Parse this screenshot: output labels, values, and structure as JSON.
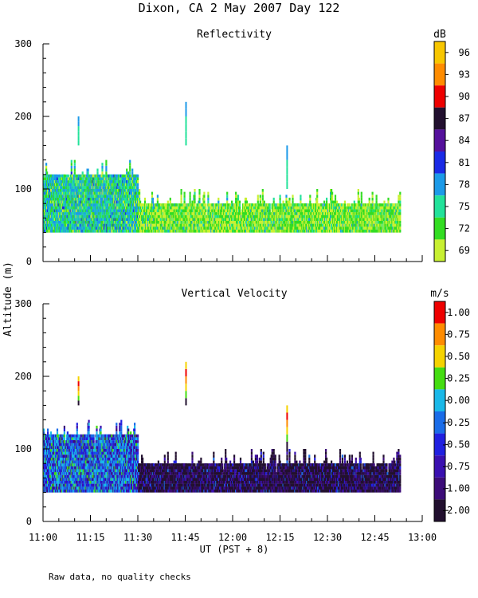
{
  "title": "Dixon, CA  2 May 2007  Day 122",
  "footnote": "Raw data, no quality checks",
  "chart_data": [
    {
      "type": "heatmap",
      "title": "Reflectivity",
      "ylabel": "Altitude (m)",
      "xlabel": "UT  (PST + 8)",
      "xlim": [
        "11:00",
        "13:00"
      ],
      "xticks": [
        "11:00",
        "11:15",
        "11:30",
        "11:45",
        "12:00",
        "12:15",
        "12:30",
        "12:45",
        "13:00"
      ],
      "ylim": [
        0,
        300
      ],
      "yticks": [
        "0",
        "100",
        "200",
        "300"
      ],
      "colorbar": {
        "unit": "dB",
        "labels": [
          "96",
          "93",
          "90",
          "87",
          "84",
          "81",
          "78",
          "75",
          "72",
          "69"
        ],
        "colors": [
          "#f7c600",
          "#ff8c00",
          "#ee0000",
          "#22102f",
          "#55119c",
          "#1a2ae6",
          "#1c9ae8",
          "#22e29a",
          "#33dd22",
          "#c8f032"
        ]
      },
      "data_extent": {
        "start": "11:00",
        "end": "12:53",
        "min_altitude_m": 40,
        "typical_top_m": [
          80,
          120
        ]
      },
      "features": [
        {
          "time": "11:11",
          "altitude_m": [
            160,
            200
          ]
        },
        {
          "time": "11:45",
          "altitude_m": [
            160,
            220
          ]
        },
        {
          "time": "12:17",
          "altitude_m": [
            100,
            160
          ]
        }
      ]
    },
    {
      "type": "heatmap",
      "title": "Vertical Velocity",
      "ylabel": "Altitude (m)",
      "xlabel": "UT  (PST + 8)",
      "xlim": [
        "11:00",
        "13:00"
      ],
      "xticks": [
        "11:00",
        "11:15",
        "11:30",
        "11:45",
        "12:00",
        "12:15",
        "12:30",
        "12:45",
        "13:00"
      ],
      "ylim": [
        0,
        300
      ],
      "yticks": [
        "0",
        "100",
        "200",
        "300"
      ],
      "colorbar": {
        "unit": "m/s",
        "labels": [
          "1.00",
          "0.75",
          "0.50",
          "0.25",
          "0.00",
          "-0.25",
          "-0.50",
          "-0.75",
          "-1.00",
          "-2.00"
        ],
        "colors": [
          "#ee0000",
          "#ff8c00",
          "#f5d300",
          "#44dd11",
          "#1ab8e8",
          "#1a6ce8",
          "#2020e0",
          "#3a10b0",
          "#3c0c78",
          "#22102f"
        ]
      },
      "data_extent": {
        "start": "11:00",
        "end": "12:53",
        "min_altitude_m": 40,
        "typical_top_m": [
          80,
          120
        ]
      },
      "features": [
        {
          "time": "11:11",
          "altitude_m": [
            160,
            200
          ]
        },
        {
          "time": "11:45",
          "altitude_m": [
            160,
            220
          ]
        },
        {
          "time": "12:17",
          "altitude_m": [
            100,
            160
          ]
        }
      ]
    }
  ]
}
